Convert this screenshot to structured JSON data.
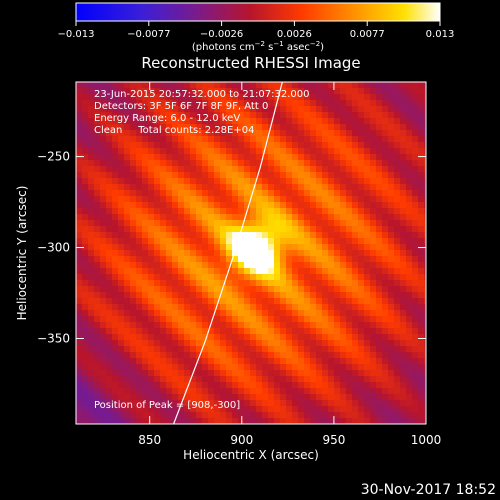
{
  "colorbar": {
    "ticks": [
      "−0.013",
      "−0.0077",
      "−0.0026",
      "0.0026",
      "0.0077",
      "0.013"
    ],
    "unit_main": "(photons cm",
    "unit_exp1": "−2",
    "unit_mid1": " s",
    "unit_exp2": "−1",
    "unit_mid2": " asec",
    "unit_exp3": "−2",
    "unit_close": ")"
  },
  "chart_data": {
    "type": "heatmap",
    "title": "Reconstructed RHESSI Image",
    "xlabel": "Heliocentric X (arcsec)",
    "ylabel": "Heliocentric Y (arcsec)",
    "xlim": [
      810,
      1000
    ],
    "ylim": [
      -397,
      -209
    ],
    "xticks": [
      850,
      900,
      950,
      1000
    ],
    "yticks": [
      -250,
      -300,
      -350
    ],
    "colorbar_range": [
      -0.013,
      0.013
    ],
    "colormap": "IDL rainbow-hot (blue-purple-red-orange-yellow-white)",
    "peak": [
      908,
      -300
    ],
    "limb_curve": [
      [
        863,
        -397
      ],
      [
        880,
        -352
      ],
      [
        896,
        -303
      ],
      [
        910,
        -256
      ],
      [
        922,
        -209
      ]
    ],
    "annotations": [
      "23-Jun-2015 20:57:32.000 to 21:07:32.000",
      "Detectors: 3F 5F 6F 7F 8F 9F, Att 0",
      "Energy Range: 6.0 - 12.0 keV",
      "Clean     Total counts: 2.28E+04",
      "Position of Peak = [908,-300]"
    ]
  },
  "footer": {
    "timestamp": "30-Nov-2017 18:52"
  }
}
